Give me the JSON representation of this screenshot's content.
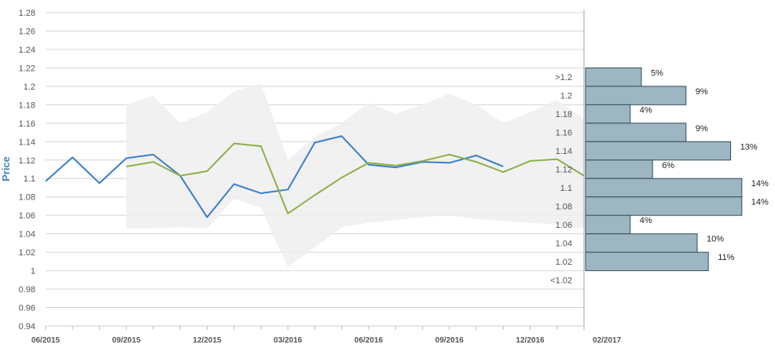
{
  "chart_data": {
    "type": "line",
    "ylabel": "Price",
    "ylim": [
      0.94,
      1.28
    ],
    "yticks": [
      "0.94",
      "0.96",
      "0.98",
      "1",
      "1.02",
      "1.04",
      "1.06",
      "1.08",
      "1.1",
      "1.12",
      "1.14",
      "1.16",
      "1.18",
      "1.2",
      "1.22",
      "1.24",
      "1.26",
      "1.28"
    ],
    "xticks": [
      "06/2015",
      "09/2015",
      "12/2015",
      "03/2016",
      "06/2016",
      "09/2016",
      "12/2016",
      "02/2017"
    ],
    "grid": true,
    "band": {
      "x_index": [
        3,
        4,
        5,
        6,
        7,
        8,
        9,
        10,
        11,
        12,
        13,
        14,
        15,
        16,
        17,
        18,
        19,
        20
      ],
      "upper": [
        1.18,
        1.19,
        1.16,
        1.172,
        1.195,
        1.203,
        1.12,
        1.145,
        1.16,
        1.182,
        1.17,
        1.18,
        1.192,
        1.18,
        1.16,
        1.172,
        1.185,
        1.165
      ],
      "lower": [
        1.046,
        1.046,
        1.047,
        1.046,
        1.078,
        1.068,
        1.004,
        1.025,
        1.047,
        1.052,
        1.055,
        1.058,
        1.06,
        1.056,
        1.054,
        1.052,
        1.05,
        1.046
      ]
    },
    "series": [
      {
        "color": "#3a7fc8",
        "x_index": [
          0,
          1,
          2,
          3,
          4,
          5,
          6,
          7,
          8,
          9,
          10,
          11,
          12,
          13,
          14,
          15,
          16,
          17
        ],
        "values": [
          1.097,
          1.123,
          1.095,
          1.122,
          1.126,
          1.103,
          1.058,
          1.094,
          1.084,
          1.088,
          1.139,
          1.146,
          1.115,
          1.112,
          1.118,
          1.117,
          1.125,
          1.113
        ]
      },
      {
        "color": "#8db04a",
        "x_index": [
          3,
          4,
          5,
          6,
          7,
          8,
          9,
          10,
          11,
          12,
          13,
          14,
          15,
          16,
          17,
          18,
          19,
          20
        ],
        "values": [
          1.113,
          1.118,
          1.103,
          1.108,
          1.138,
          1.135,
          1.062,
          1.082,
          1.101,
          1.117,
          1.114,
          1.119,
          1.126,
          1.118,
          1.107,
          1.119,
          1.121,
          1.103
        ]
      }
    ],
    "histogram": {
      "color": "#9eb5c2",
      "bins": [
        {
          "label": ">1.2",
          "pct": "5%",
          "value": 5,
          "y_low": 1.2,
          "y_high": 1.22
        },
        {
          "label": "1.2",
          "pct": "9%",
          "value": 9,
          "y_low": 1.18,
          "y_high": 1.2
        },
        {
          "label": "1.18",
          "pct": "4%",
          "value": 4,
          "y_low": 1.16,
          "y_high": 1.18
        },
        {
          "label": "1.16",
          "pct": "9%",
          "value": 9,
          "y_low": 1.14,
          "y_high": 1.16
        },
        {
          "label": "1.14",
          "pct": "13%",
          "value": 13,
          "y_low": 1.12,
          "y_high": 1.14
        },
        {
          "label": "1.12",
          "pct": "6%",
          "value": 6,
          "y_low": 1.1,
          "y_high": 1.12
        },
        {
          "label": "1.1",
          "pct": "14%",
          "value": 14,
          "y_low": 1.08,
          "y_high": 1.1
        },
        {
          "label": "1.08",
          "pct": "14%",
          "value": 14,
          "y_low": 1.06,
          "y_high": 1.08
        },
        {
          "label": "1.06",
          "pct": "4%",
          "value": 4,
          "y_low": 1.04,
          "y_high": 1.06
        },
        {
          "label": "1.04",
          "pct": "10%",
          "value": 10,
          "y_low": 1.02,
          "y_high": 1.04
        },
        {
          "label": "1.02",
          "pct": "11%",
          "value": 11,
          "y_low": 1.0,
          "y_high": 1.02
        },
        {
          "label": "<1.02",
          "pct": "",
          "value": 0,
          "y_low": 0.98,
          "y_high": 1.0
        }
      ]
    }
  }
}
